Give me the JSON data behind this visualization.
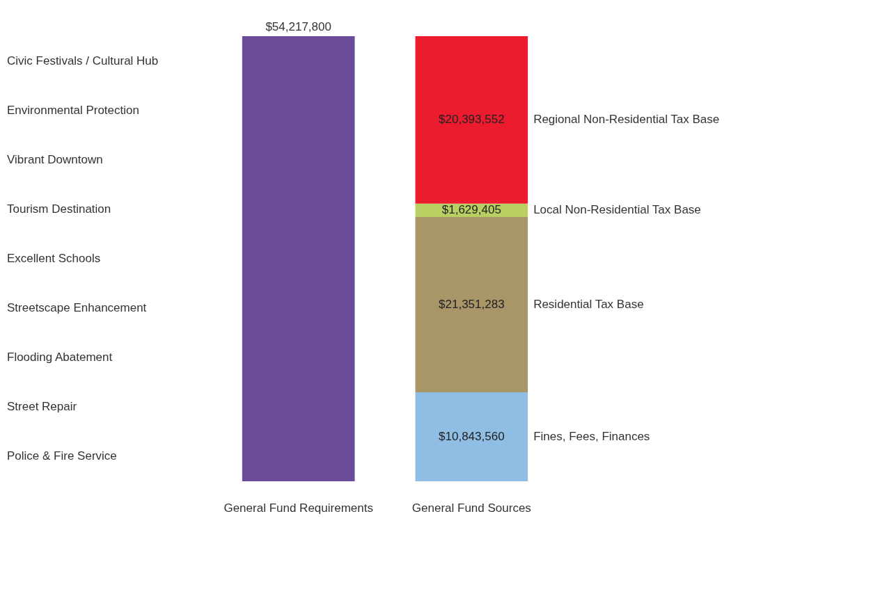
{
  "chart_data": {
    "type": "bar",
    "stacked": true,
    "tick_labels": "x",
    "legend": false,
    "grid": false,
    "categories": [
      "General Fund Requirements",
      "General Fund Sources"
    ],
    "series": [
      {
        "color": "#6b4c9a",
        "values": [
          54217800,
          null
        ],
        "value_labels": [
          "$54,217,800",
          null
        ]
      },
      {
        "name": "Fines, Fees, Finances",
        "color": "#8fbde3",
        "values": [
          null,
          10843560
        ],
        "value_labels": [
          null,
          "$10,843,560"
        ]
      },
      {
        "name": "Residential Tax Base",
        "color": "#a89668",
        "values": [
          null,
          21351283
        ],
        "value_labels": [
          null,
          "$21,351,283"
        ]
      },
      {
        "name": "Local Non-Residential Tax Base",
        "color": "#b9cf62",
        "values": [
          null,
          1629405
        ],
        "value_labels": [
          null,
          "$1,629,405"
        ]
      },
      {
        "name": "Regional Non-Residential Tax Base",
        "color": "#ec1b2e",
        "values": [
          null,
          20393552
        ],
        "value_labels": [
          null,
          "$20,393,552"
        ]
      }
    ],
    "annotations": [
      "Civic Festivals / Cultural Hub",
      "Environmental Protection",
      "Vibrant Downtown",
      "Tourism Destination",
      "Excellent Schools",
      "Streetscape Enhancement",
      "Flooding Abatement",
      "Street Repair",
      "Police & Fire Service"
    ]
  }
}
